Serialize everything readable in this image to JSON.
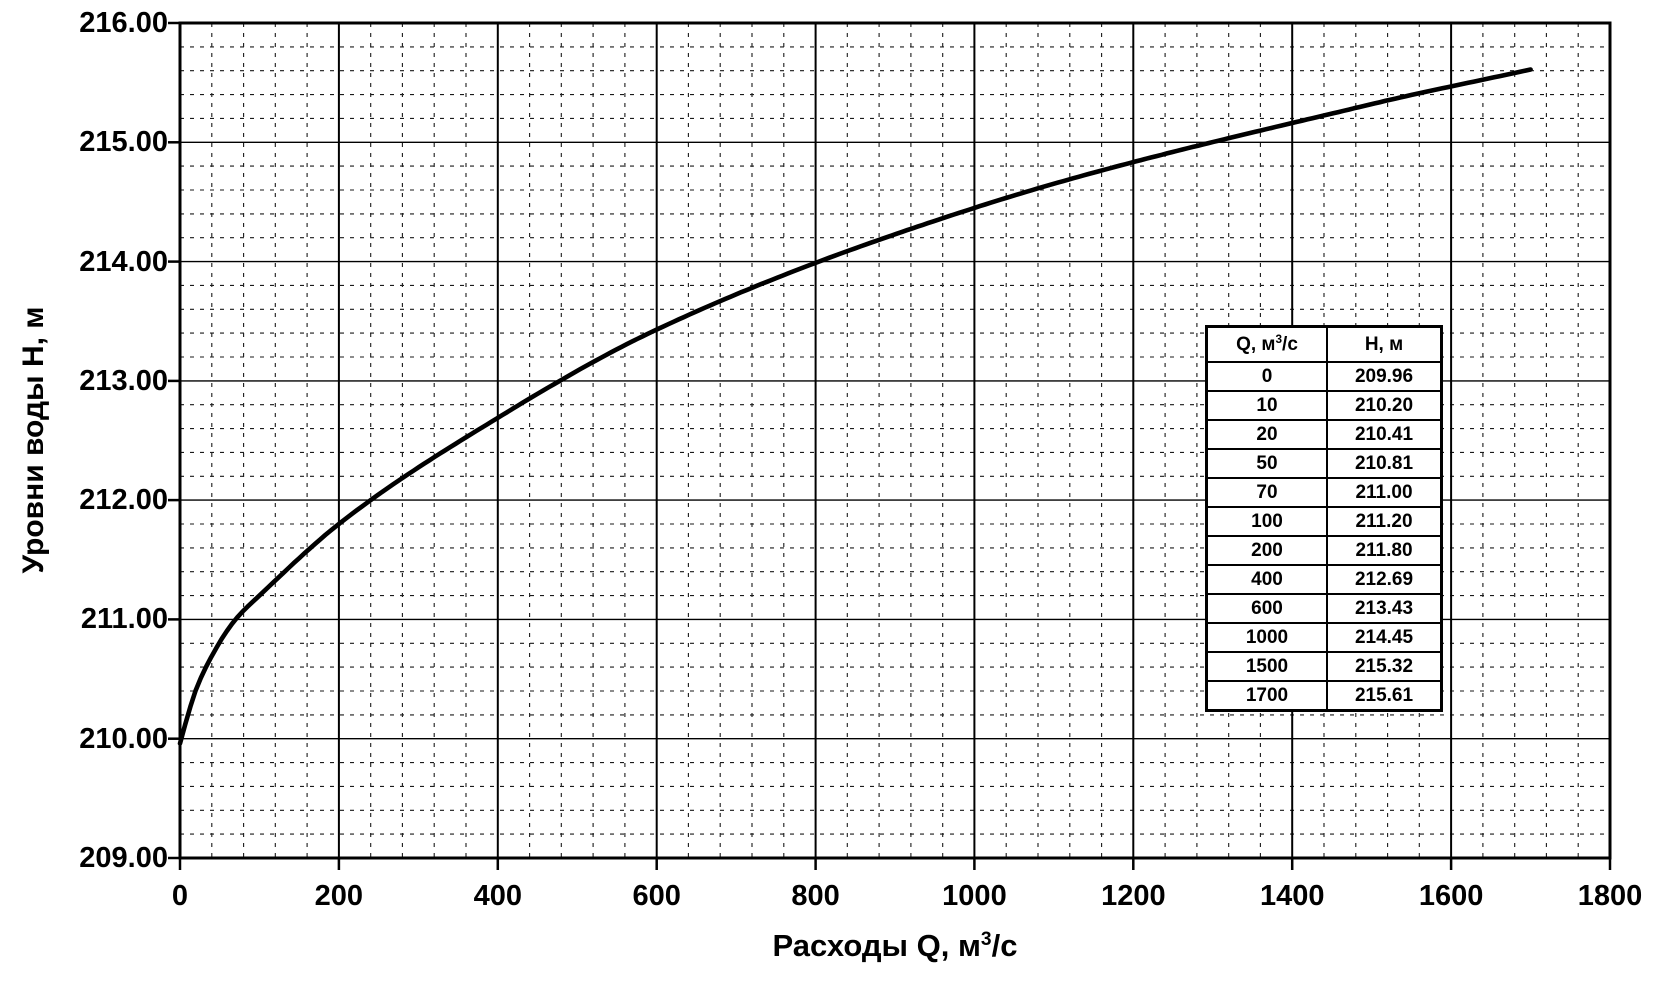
{
  "chart": {
    "y_axis_title": "Уровни воды Н, м",
    "x_axis_title_pre": "Расходы Q, м",
    "x_axis_title_sup": "3",
    "x_axis_title_post": "/с",
    "y_tick_labels": [
      "216.00",
      "215.00",
      "214.00",
      "213.00",
      "212.00",
      "211.00",
      "210.00",
      "209.00"
    ],
    "x_tick_labels": [
      "0",
      "200",
      "400",
      "600",
      "800",
      "1000",
      "1200",
      "1400",
      "1600",
      "1800"
    ]
  },
  "inset_table": {
    "header_q_pre": "Q, м",
    "header_q_sup": "3",
    "header_q_post": "/с",
    "header_h": "Н, м",
    "rows": [
      {
        "q": "0",
        "h": "209.96"
      },
      {
        "q": "10",
        "h": "210.20"
      },
      {
        "q": "20",
        "h": "210.41"
      },
      {
        "q": "50",
        "h": "210.81"
      },
      {
        "q": "70",
        "h": "211.00"
      },
      {
        "q": "100",
        "h": "211.20"
      },
      {
        "q": "200",
        "h": "211.80"
      },
      {
        "q": "400",
        "h": "212.69"
      },
      {
        "q": "600",
        "h": "213.43"
      },
      {
        "q": "1000",
        "h": "214.45"
      },
      {
        "q": "1500",
        "h": "215.32"
      },
      {
        "q": "1700",
        "h": "215.61"
      }
    ]
  },
  "chart_data": {
    "type": "line",
    "title": "",
    "xlabel": "Расходы Q, м³/с",
    "ylabel": "Уровни воды Н, м",
    "x": [
      0,
      10,
      20,
      50,
      70,
      100,
      200,
      400,
      600,
      1000,
      1500,
      1700
    ],
    "y": [
      209.96,
      210.2,
      210.41,
      210.81,
      211.0,
      211.2,
      211.8,
      212.69,
      213.43,
      214.45,
      215.32,
      215.61
    ],
    "xlim": [
      0,
      1800
    ],
    "ylim": [
      209,
      216
    ],
    "x_major_step": 200,
    "x_minor_step": 40,
    "y_major_step": 1.0,
    "y_minor_step": 0.2,
    "grid": "major-solid, minor-dashed",
    "legend": "none",
    "line_color": "#000000",
    "background_color": "#ffffff"
  }
}
